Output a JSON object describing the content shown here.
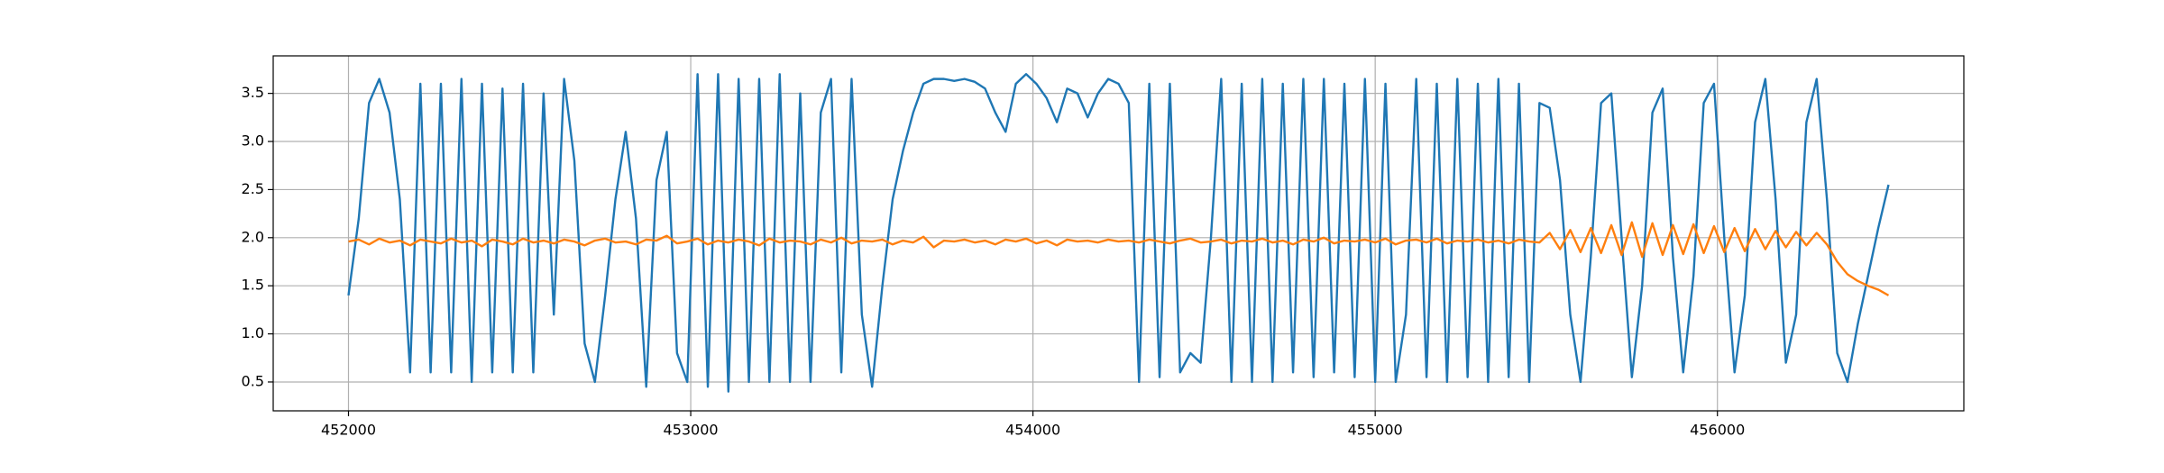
{
  "chart_data": {
    "type": "line",
    "x": [
      452000,
      452030,
      452060,
      452090,
      452120,
      452150,
      452180,
      452210,
      452240,
      452270,
      452300,
      452330,
      452360,
      452390,
      452420,
      452450,
      452480,
      452510,
      452540,
      452570,
      452600,
      452630,
      452660,
      452690,
      452720,
      452750,
      452780,
      452810,
      452840,
      452870,
      452900,
      452930,
      452960,
      452990,
      453020,
      453050,
      453080,
      453110,
      453140,
      453170,
      453200,
      453230,
      453260,
      453290,
      453320,
      453350,
      453380,
      453410,
      453440,
      453470,
      453500,
      453530,
      453560,
      453590,
      453620,
      453650,
      453680,
      453710,
      453740,
      453770,
      453800,
      453830,
      453860,
      453890,
      453920,
      453950,
      453980,
      454010,
      454040,
      454070,
      454100,
      454130,
      454160,
      454190,
      454220,
      454250,
      454280,
      454310,
      454340,
      454370,
      454400,
      454430,
      454460,
      454490,
      454520,
      454550,
      454580,
      454610,
      454640,
      454670,
      454700,
      454730,
      454760,
      454790,
      454820,
      454850,
      454880,
      454910,
      454940,
      454970,
      455000,
      455030,
      455060,
      455090,
      455120,
      455150,
      455180,
      455210,
      455240,
      455270,
      455300,
      455330,
      455360,
      455390,
      455420,
      455450,
      455480,
      455510,
      455540,
      455570,
      455600,
      455630,
      455660,
      455690,
      455720,
      455750,
      455780,
      455810,
      455840,
      455870,
      455900,
      455930,
      455960,
      455990,
      456020,
      456050,
      456080,
      456110,
      456140,
      456170,
      456200,
      456230,
      456260,
      456290,
      456320,
      456350,
      456380,
      456410,
      456440,
      456470,
      456500
    ],
    "series": [
      {
        "color": "#1f77b4",
        "values": [
          1.4,
          2.2,
          3.4,
          3.65,
          3.3,
          2.4,
          0.6,
          3.6,
          0.6,
          3.6,
          0.6,
          3.65,
          0.5,
          3.6,
          0.6,
          3.55,
          0.6,
          3.6,
          0.6,
          3.5,
          1.2,
          3.65,
          2.8,
          0.9,
          0.5,
          1.4,
          2.4,
          3.1,
          2.2,
          0.45,
          2.6,
          3.1,
          0.8,
          0.5,
          3.7,
          0.45,
          3.7,
          0.4,
          3.65,
          0.5,
          3.65,
          0.5,
          3.7,
          0.5,
          3.5,
          0.5,
          3.3,
          3.65,
          0.6,
          3.65,
          1.2,
          0.45,
          1.5,
          2.4,
          2.9,
          3.3,
          3.6,
          3.65,
          3.65,
          3.63,
          3.65,
          3.62,
          3.55,
          3.3,
          3.1,
          3.6,
          3.7,
          3.6,
          3.45,
          3.2,
          3.55,
          3.5,
          3.25,
          3.5,
          3.65,
          3.6,
          3.4,
          0.5,
          3.6,
          0.55,
          3.6,
          0.6,
          0.8,
          0.7,
          2.0,
          3.65,
          0.5,
          3.6,
          0.5,
          3.65,
          0.5,
          3.6,
          0.6,
          3.65,
          0.55,
          3.65,
          0.6,
          3.6,
          0.55,
          3.65,
          0.5,
          3.6,
          0.5,
          1.2,
          3.65,
          0.55,
          3.6,
          0.5,
          3.65,
          0.55,
          3.6,
          0.5,
          3.65,
          0.55,
          3.6,
          0.5,
          3.4,
          3.35,
          2.6,
          1.2,
          0.5,
          1.8,
          3.4,
          3.5,
          2.0,
          0.55,
          1.5,
          3.3,
          3.55,
          1.8,
          0.6,
          1.6,
          3.4,
          3.6,
          2.0,
          0.6,
          1.4,
          3.2,
          3.65,
          2.4,
          0.7,
          1.2,
          3.2,
          3.65,
          2.4,
          0.8,
          0.5,
          1.1,
          1.6,
          2.1,
          2.55
        ]
      },
      {
        "color": "#ff7f0e",
        "values": [
          1.96,
          1.98,
          1.93,
          1.99,
          1.95,
          1.97,
          1.92,
          1.98,
          1.96,
          1.94,
          1.99,
          1.95,
          1.97,
          1.91,
          1.98,
          1.96,
          1.93,
          1.99,
          1.95,
          1.97,
          1.94,
          1.98,
          1.96,
          1.92,
          1.97,
          1.99,
          1.95,
          1.96,
          1.93,
          1.98,
          1.97,
          2.02,
          1.94,
          1.96,
          1.99,
          1.93,
          1.97,
          1.95,
          1.98,
          1.96,
          1.92,
          1.99,
          1.95,
          1.97,
          1.96,
          1.93,
          1.98,
          1.95,
          2.0,
          1.94,
          1.97,
          1.96,
          1.98,
          1.93,
          1.97,
          1.95,
          2.01,
          1.9,
          1.97,
          1.96,
          1.98,
          1.95,
          1.97,
          1.93,
          1.98,
          1.96,
          1.99,
          1.94,
          1.97,
          1.92,
          1.98,
          1.96,
          1.97,
          1.95,
          1.98,
          1.96,
          1.97,
          1.95,
          1.98,
          1.96,
          1.94,
          1.97,
          1.99,
          1.95,
          1.96,
          1.98,
          1.94,
          1.97,
          1.96,
          1.99,
          1.95,
          1.97,
          1.93,
          1.98,
          1.96,
          2.0,
          1.94,
          1.97,
          1.96,
          1.98,
          1.95,
          1.99,
          1.93,
          1.97,
          1.98,
          1.95,
          1.99,
          1.94,
          1.97,
          1.96,
          1.98,
          1.95,
          1.97,
          1.94,
          1.98,
          1.96,
          1.95,
          2.05,
          1.88,
          2.08,
          1.85,
          2.1,
          1.84,
          2.13,
          1.82,
          2.16,
          1.8,
          2.15,
          1.82,
          2.13,
          1.83,
          2.14,
          1.84,
          2.12,
          1.85,
          2.1,
          1.86,
          2.09,
          1.88,
          2.07,
          1.9,
          2.06,
          1.92,
          2.05,
          1.93,
          1.75,
          1.62,
          1.55,
          1.5,
          1.46,
          1.4
        ]
      }
    ],
    "xlim": [
      451780,
      456720
    ],
    "ylim": [
      0.2,
      3.89
    ],
    "xticks": [
      452000,
      453000,
      454000,
      455000,
      456000
    ],
    "yticks": [
      0.5,
      {
        "value": 1,
        "label": "1.0"
      },
      1.5,
      {
        "value": 2,
        "label": "2.0"
      },
      2.5,
      {
        "value": 3,
        "label": "3.0"
      },
      3.5
    ],
    "grid": true
  }
}
